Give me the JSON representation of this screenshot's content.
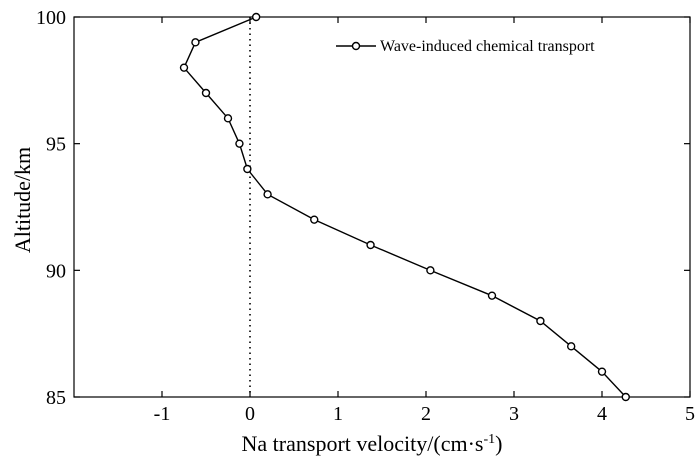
{
  "chart_data": {
    "type": "line",
    "title": "",
    "xlabel": "Na transport velocity/(cm·s",
    "xlabel_superscript": "-1",
    "xlabel_suffix": ")",
    "ylabel": "Altitude/km",
    "xlim": [
      -2,
      5
    ],
    "ylim": [
      85,
      100
    ],
    "xticks": [
      -1,
      0,
      1,
      2,
      3,
      4,
      5
    ],
    "xtick_labels": [
      "-1",
      "0",
      "1",
      "2",
      "3",
      "4",
      "5"
    ],
    "yticks": [
      85,
      90,
      95,
      100
    ],
    "ytick_labels": [
      "85",
      "90",
      "95",
      "100"
    ],
    "grid": false,
    "legend_position": "top-right",
    "reference_line": {
      "x": 0,
      "style": "dotted"
    },
    "series": [
      {
        "name": "Wave-induced chemical transport",
        "marker": "open-circle",
        "color": "#000000",
        "x": [
          0.07,
          -0.62,
          -0.75,
          -0.5,
          -0.25,
          -0.12,
          -0.03,
          0.2,
          0.73,
          1.37,
          2.05,
          2.75,
          3.3,
          3.65,
          4.0,
          4.27
        ],
        "y": [
          100,
          99,
          98,
          97,
          96,
          95,
          94,
          93,
          92,
          91,
          90,
          89,
          88,
          87,
          86,
          85
        ]
      }
    ]
  }
}
